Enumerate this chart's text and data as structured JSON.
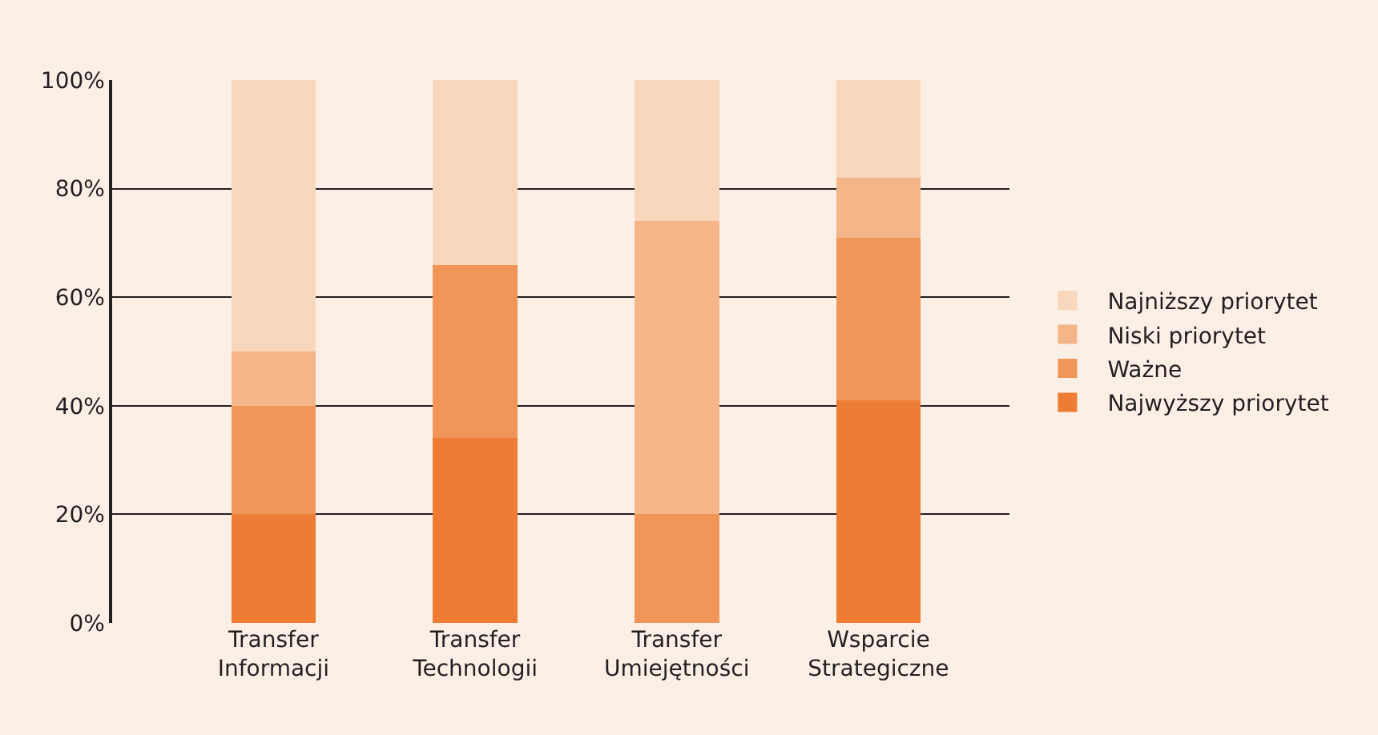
{
  "chart_data": {
    "type": "bar",
    "stacked": true,
    "categories": [
      "Transfer\nInformacji",
      "Transfer\nTechnologii",
      "Transfer\nUmiejętności",
      "Wsparcie\nStrategiczne"
    ],
    "series": [
      {
        "name": "Najwyższy priorytet",
        "color": "#ed7d35",
        "values": [
          20,
          34,
          0,
          41
        ]
      },
      {
        "name": "Ważne",
        "color": "#f09658",
        "values": [
          20,
          32,
          20,
          30
        ]
      },
      {
        "name": "Niski priorytet",
        "color": "#f4b688",
        "values": [
          10,
          0,
          54,
          11
        ]
      },
      {
        "name": "Najniższy priorytet",
        "color": "#f9d7bc",
        "values": [
          50,
          34,
          26,
          18
        ]
      }
    ],
    "ylim": [
      0,
      100
    ],
    "yticks": [
      {
        "value": 0,
        "label": "0%"
      },
      {
        "value": 20,
        "label": "20%"
      },
      {
        "value": 40,
        "label": "40%"
      },
      {
        "value": 60,
        "label": "60%"
      },
      {
        "value": 80,
        "label": "80%"
      },
      {
        "value": 100,
        "label": "100%"
      }
    ],
    "grid": "y",
    "legend": "right"
  }
}
